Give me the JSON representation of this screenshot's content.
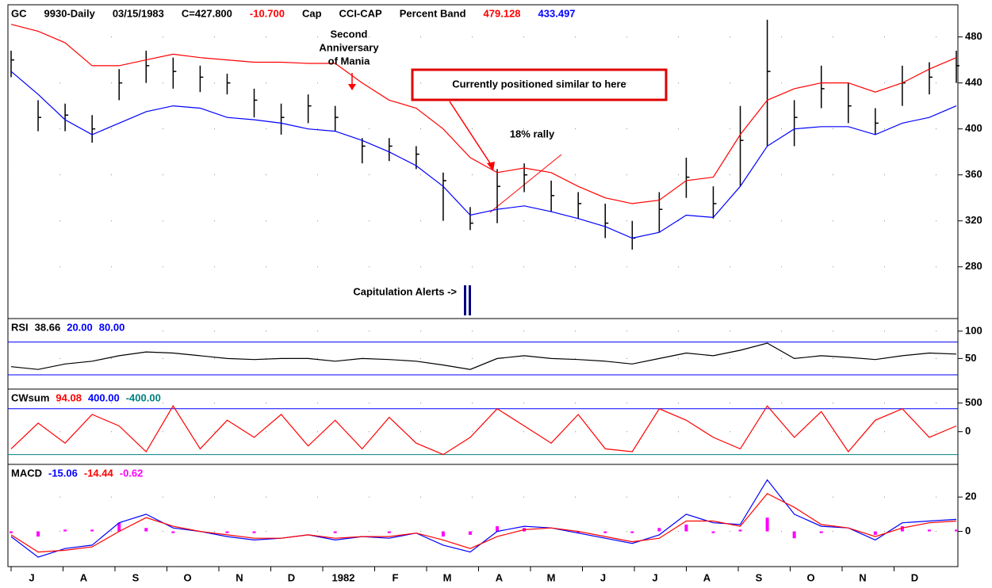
{
  "chart_data": [
    {
      "type": "price",
      "header": [
        {
          "text": "GC",
          "color": "#000000"
        },
        {
          "text": "9930-Daily",
          "color": "#000000"
        },
        {
          "text": "03/15/1983",
          "color": "#000000"
        },
        {
          "text": "C=427.800",
          "color": "#000000"
        },
        {
          "text": "-10.700",
          "color": "#ff0000"
        },
        {
          "text": "Cap",
          "color": "#000000"
        },
        {
          "text": "CCI-CAP",
          "color": "#000000"
        },
        {
          "text": "Percent Band",
          "color": "#000000"
        },
        {
          "text": "479.128",
          "color": "#ff0000"
        },
        {
          "text": "433.497",
          "color": "#0000ff"
        }
      ],
      "annotations": {
        "mania": [
          "Second",
          "Anniversary",
          "of Mania"
        ],
        "box": "Currently positioned similar to here",
        "rally": "18% rally",
        "alerts": "Capitulation Alerts ->"
      },
      "ylim": [
        235,
        508
      ],
      "yticks": [
        280,
        320,
        360,
        400,
        440,
        480
      ],
      "grid": true,
      "high": [
        468,
        425,
        422,
        412,
        452,
        468,
        462,
        455,
        448,
        435,
        422,
        430,
        420,
        392,
        392,
        385,
        362,
        332,
        365,
        370,
        355,
        345,
        335,
        320,
        345,
        375,
        350,
        420,
        495,
        425,
        455,
        440,
        418,
        455,
        458,
        468
      ],
      "low": [
        445,
        398,
        398,
        388,
        425,
        440,
        435,
        432,
        430,
        410,
        395,
        405,
        398,
        370,
        372,
        365,
        320,
        312,
        318,
        345,
        328,
        322,
        305,
        295,
        310,
        340,
        322,
        350,
        385,
        385,
        418,
        405,
        395,
        420,
        430,
        440
      ],
      "close": [
        460,
        410,
        412,
        400,
        440,
        455,
        450,
        445,
        440,
        425,
        410,
        420,
        410,
        385,
        385,
        378,
        355,
        318,
        350,
        360,
        342,
        335,
        318,
        305,
        330,
        358,
        335,
        390,
        450,
        410,
        435,
        420,
        405,
        440,
        445,
        455
      ],
      "series": [
        {
          "color": "#ff0000",
          "values": [
            491,
            485,
            475,
            455,
            455,
            460,
            465,
            462,
            460,
            458,
            458,
            457,
            457,
            440,
            425,
            418,
            400,
            375,
            362,
            366,
            362,
            350,
            340,
            335,
            338,
            355,
            358,
            395,
            425,
            435,
            440,
            440,
            432,
            440,
            452,
            462
          ]
        },
        {
          "color": "#0000ff",
          "values": [
            450,
            430,
            408,
            395,
            405,
            415,
            420,
            418,
            410,
            408,
            405,
            400,
            398,
            390,
            380,
            368,
            350,
            325,
            330,
            333,
            328,
            322,
            315,
            305,
            310,
            325,
            323,
            350,
            385,
            400,
            402,
            402,
            395,
            405,
            410,
            420
          ]
        }
      ]
    },
    {
      "type": "line",
      "header": [
        {
          "text": "RSI",
          "color": "#000000"
        },
        {
          "text": "38.66",
          "color": "#000000"
        }
      ],
      "hlines": [
        {
          "value": 20,
          "label": "20.00",
          "color": "#0000ff"
        },
        {
          "value": 80,
          "label": "80.00",
          "color": "#0000ff"
        }
      ],
      "ylim": [
        -6,
        123
      ],
      "yticks": [
        50,
        100
      ],
      "grid": true,
      "series": [
        {
          "color": "#000000",
          "values": [
            35,
            30,
            40,
            45,
            55,
            62,
            60,
            55,
            50,
            48,
            50,
            50,
            45,
            50,
            48,
            45,
            38,
            30,
            50,
            55,
            50,
            48,
            45,
            40,
            50,
            60,
            55,
            65,
            78,
            50,
            55,
            52,
            48,
            55,
            60,
            58
          ]
        }
      ]
    },
    {
      "type": "line",
      "header": [
        {
          "text": "CWsum",
          "color": "#000000"
        },
        {
          "text": "94.08",
          "color": "#ff0000"
        }
      ],
      "hlines": [
        {
          "value": 400,
          "label": "400.00",
          "color": "#0000ff"
        },
        {
          "value": -400,
          "label": "-400.00",
          "color": "#008080"
        }
      ],
      "ylim": [
        -571,
        743
      ],
      "yticks": [
        0,
        500
      ],
      "grid": true,
      "series": [
        {
          "color": "#ff0000",
          "values": [
            -300,
            150,
            -200,
            300,
            100,
            -350,
            450,
            -300,
            200,
            -100,
            300,
            -250,
            200,
            -300,
            250,
            -200,
            -400,
            -100,
            400,
            100,
            -200,
            300,
            -300,
            -350,
            400,
            200,
            -100,
            -300,
            450,
            -100,
            350,
            -350,
            200,
            400,
            -100,
            100
          ]
        }
      ]
    },
    {
      "type": "macd",
      "header": [
        {
          "text": "MACD",
          "color": "#000000"
        },
        {
          "text": "-15.06",
          "color": "#0000ff"
        },
        {
          "text": "-14.44",
          "color": "#ff0000"
        },
        {
          "text": "-0.62",
          "color": "#ff00ff"
        }
      ],
      "ylim": [
        -20.5,
        39
      ],
      "yticks": [
        0,
        20
      ],
      "grid": true,
      "histogram": {
        "color": "#ff00ff",
        "values": [
          -1,
          -3,
          1,
          1,
          5,
          2,
          -1,
          0,
          -1,
          -1,
          0,
          0,
          -1,
          0,
          -1,
          0,
          -3,
          -2,
          3,
          2,
          0,
          -1,
          -1,
          -1,
          2,
          4,
          -1,
          1,
          8,
          -4,
          -1,
          0,
          -2,
          3,
          1,
          1
        ]
      },
      "series": [
        {
          "color": "#0000ff",
          "values": [
            -3,
            -15,
            -10,
            -8,
            5,
            10,
            2,
            0,
            -3,
            -5,
            -4,
            -2,
            -5,
            -3,
            -4,
            -1,
            -8,
            -12,
            0,
            3,
            2,
            -1,
            -4,
            -7,
            -2,
            10,
            5,
            4,
            30,
            10,
            3,
            2,
            -5,
            5,
            6,
            7
          ]
        },
        {
          "color": "#ff0000",
          "values": [
            -2,
            -12,
            -11,
            -9,
            0,
            8,
            3,
            0,
            -2,
            -4,
            -4,
            -2,
            -4,
            -3,
            -3,
            -1,
            -5,
            -10,
            -3,
            1,
            2,
            0,
            -3,
            -6,
            -4,
            6,
            6,
            3,
            22,
            14,
            4,
            2,
            -3,
            2,
            5,
            6
          ]
        }
      ],
      "xlabels": [
        "J",
        "A",
        "S",
        "O",
        "N",
        "D",
        "1982",
        "F",
        "M",
        "A",
        "M",
        "J",
        "J",
        "A",
        "S",
        "O",
        "N",
        "D"
      ]
    }
  ]
}
